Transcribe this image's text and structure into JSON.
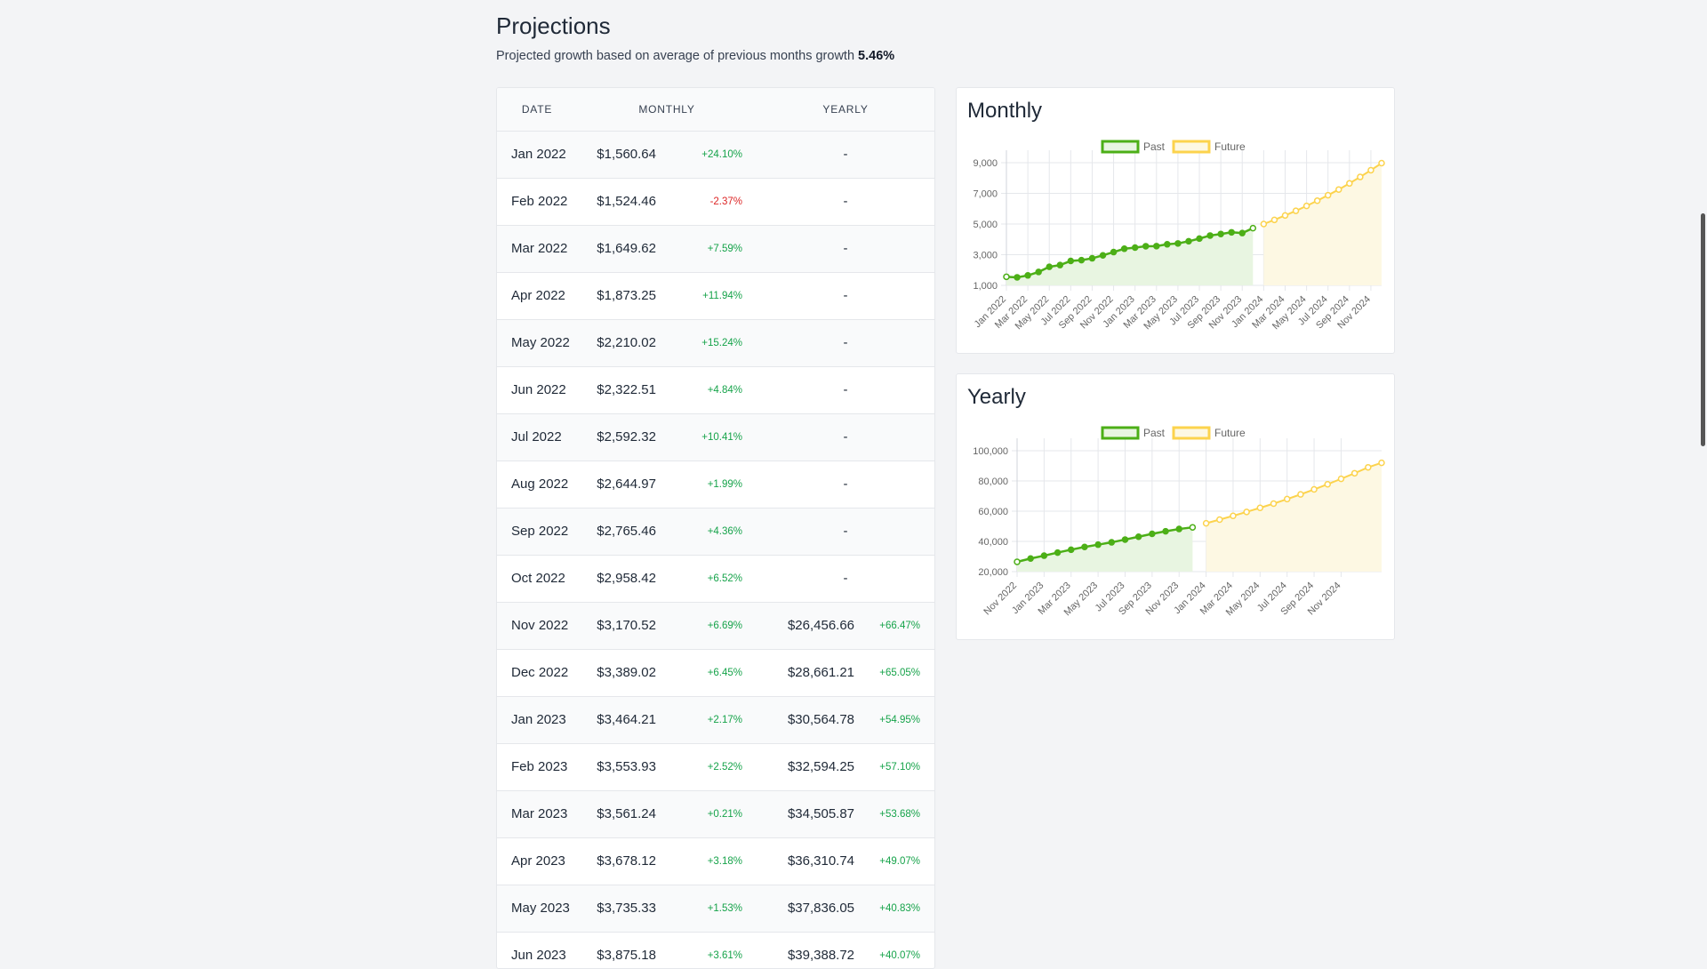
{
  "page": {
    "title": "Projections",
    "subtitle_prefix": "Projected growth based on average of previous months growth",
    "growth_rate": "5.46%"
  },
  "table": {
    "headers": {
      "date": "DATE",
      "monthly": "MONTHLY",
      "yearly": "YEARLY"
    },
    "rows": [
      {
        "date": "Jan 2022",
        "monthly": "$1,560.64",
        "monthly_pct": "+24.10%",
        "yearly": "-",
        "yearly_pct": ""
      },
      {
        "date": "Feb 2022",
        "monthly": "$1,524.46",
        "monthly_pct": "-2.37%",
        "yearly": "-",
        "yearly_pct": ""
      },
      {
        "date": "Mar 2022",
        "monthly": "$1,649.62",
        "monthly_pct": "+7.59%",
        "yearly": "-",
        "yearly_pct": ""
      },
      {
        "date": "Apr 2022",
        "monthly": "$1,873.25",
        "monthly_pct": "+11.94%",
        "yearly": "-",
        "yearly_pct": ""
      },
      {
        "date": "May 2022",
        "monthly": "$2,210.02",
        "monthly_pct": "+15.24%",
        "yearly": "-",
        "yearly_pct": ""
      },
      {
        "date": "Jun 2022",
        "monthly": "$2,322.51",
        "monthly_pct": "+4.84%",
        "yearly": "-",
        "yearly_pct": ""
      },
      {
        "date": "Jul 2022",
        "monthly": "$2,592.32",
        "monthly_pct": "+10.41%",
        "yearly": "-",
        "yearly_pct": ""
      },
      {
        "date": "Aug 2022",
        "monthly": "$2,644.97",
        "monthly_pct": "+1.99%",
        "yearly": "-",
        "yearly_pct": ""
      },
      {
        "date": "Sep 2022",
        "monthly": "$2,765.46",
        "monthly_pct": "+4.36%",
        "yearly": "-",
        "yearly_pct": ""
      },
      {
        "date": "Oct 2022",
        "monthly": "$2,958.42",
        "monthly_pct": "+6.52%",
        "yearly": "-",
        "yearly_pct": ""
      },
      {
        "date": "Nov 2022",
        "monthly": "$3,170.52",
        "monthly_pct": "+6.69%",
        "yearly": "$26,456.66",
        "yearly_pct": "+66.47%"
      },
      {
        "date": "Dec 2022",
        "monthly": "$3,389.02",
        "monthly_pct": "+6.45%",
        "yearly": "$28,661.21",
        "yearly_pct": "+65.05%"
      },
      {
        "date": "Jan 2023",
        "monthly": "$3,464.21",
        "monthly_pct": "+2.17%",
        "yearly": "$30,564.78",
        "yearly_pct": "+54.95%"
      },
      {
        "date": "Feb 2023",
        "monthly": "$3,553.93",
        "monthly_pct": "+2.52%",
        "yearly": "$32,594.25",
        "yearly_pct": "+57.10%"
      },
      {
        "date": "Mar 2023",
        "monthly": "$3,561.24",
        "monthly_pct": "+0.21%",
        "yearly": "$34,505.87",
        "yearly_pct": "+53.68%"
      },
      {
        "date": "Apr 2023",
        "monthly": "$3,678.12",
        "monthly_pct": "+3.18%",
        "yearly": "$36,310.74",
        "yearly_pct": "+49.07%"
      },
      {
        "date": "May 2023",
        "monthly": "$3,735.33",
        "monthly_pct": "+1.53%",
        "yearly": "$37,836.05",
        "yearly_pct": "+40.83%"
      },
      {
        "date": "Jun 2023",
        "monthly": "$3,875.18",
        "monthly_pct": "+3.61%",
        "yearly": "$39,388.72",
        "yearly_pct": "+40.07%"
      }
    ]
  },
  "colors": {
    "past": "#4caf17",
    "past_fill": "#e8f5e1",
    "future": "#fcd34d",
    "future_fill": "#fdf8e3",
    "positive": "#16a34a",
    "negative": "#dc2626"
  },
  "chart_data": [
    {
      "type": "line",
      "title": "Monthly",
      "legend": [
        "Past",
        "Future"
      ],
      "legend_position": "top-center",
      "grid": true,
      "y_ticks": [
        "1,000",
        "3,000",
        "5,000",
        "7,000",
        "9,000"
      ],
      "ylim": [
        1000,
        9000
      ],
      "x_tick_labels": [
        "Jan 2022",
        "Mar 2022",
        "May 2022",
        "Jul 2022",
        "Sep 2022",
        "Nov 2022",
        "Jan 2023",
        "Mar 2023",
        "May 2023",
        "Jul 2023",
        "Sep 2023",
        "Nov 2023",
        "Jan 2024",
        "Mar 2024",
        "May 2024",
        "Jul 2024",
        "Sep 2024",
        "Nov 2024"
      ],
      "series": [
        {
          "name": "Past",
          "start": "Jan 2022",
          "values": [
            1560.64,
            1524.46,
            1649.62,
            1873.25,
            2210.02,
            2322.51,
            2592.32,
            2644.97,
            2765.46,
            2958.42,
            3170.52,
            3389.02,
            3464.21,
            3553.93,
            3561.24,
            3678.12,
            3735.33,
            3875.18,
            4050,
            4250,
            4350,
            4460,
            4410,
            4730
          ]
        },
        {
          "name": "Future",
          "start": "Jan 2024",
          "values": [
            5000,
            5270,
            5560,
            5860,
            6180,
            6520,
            6880,
            7250,
            7650,
            8070,
            8510,
            8970
          ]
        }
      ]
    },
    {
      "type": "line",
      "title": "Yearly",
      "legend": [
        "Past",
        "Future"
      ],
      "legend_position": "top-center",
      "grid": true,
      "y_ticks": [
        "20,000",
        "40,000",
        "60,000",
        "80,000",
        "100,000"
      ],
      "ylim": [
        20000,
        100000
      ],
      "x_tick_labels": [
        "Nov 2022",
        "Jan 2023",
        "Mar 2023",
        "May 2023",
        "Jul 2023",
        "Sep 2023",
        "Nov 2023",
        "Jan 2024",
        "Mar 2024",
        "May 2024",
        "Jul 2024",
        "Sep 2024",
        "Nov 2024"
      ],
      "series": [
        {
          "name": "Past",
          "start": "Nov 2022",
          "values": [
            26456.66,
            28661.21,
            30564.78,
            32594.25,
            34505.87,
            36310.74,
            37836.05,
            39388.72,
            41200,
            43100,
            45000,
            46700,
            48200,
            49300
          ]
        },
        {
          "name": "Future",
          "start": "Jan 2024",
          "values": [
            52000,
            54400,
            56900,
            59500,
            62200,
            65000,
            68000,
            71100,
            74400,
            77800,
            81400,
            85100,
            89000,
            92000
          ]
        }
      ]
    }
  ]
}
